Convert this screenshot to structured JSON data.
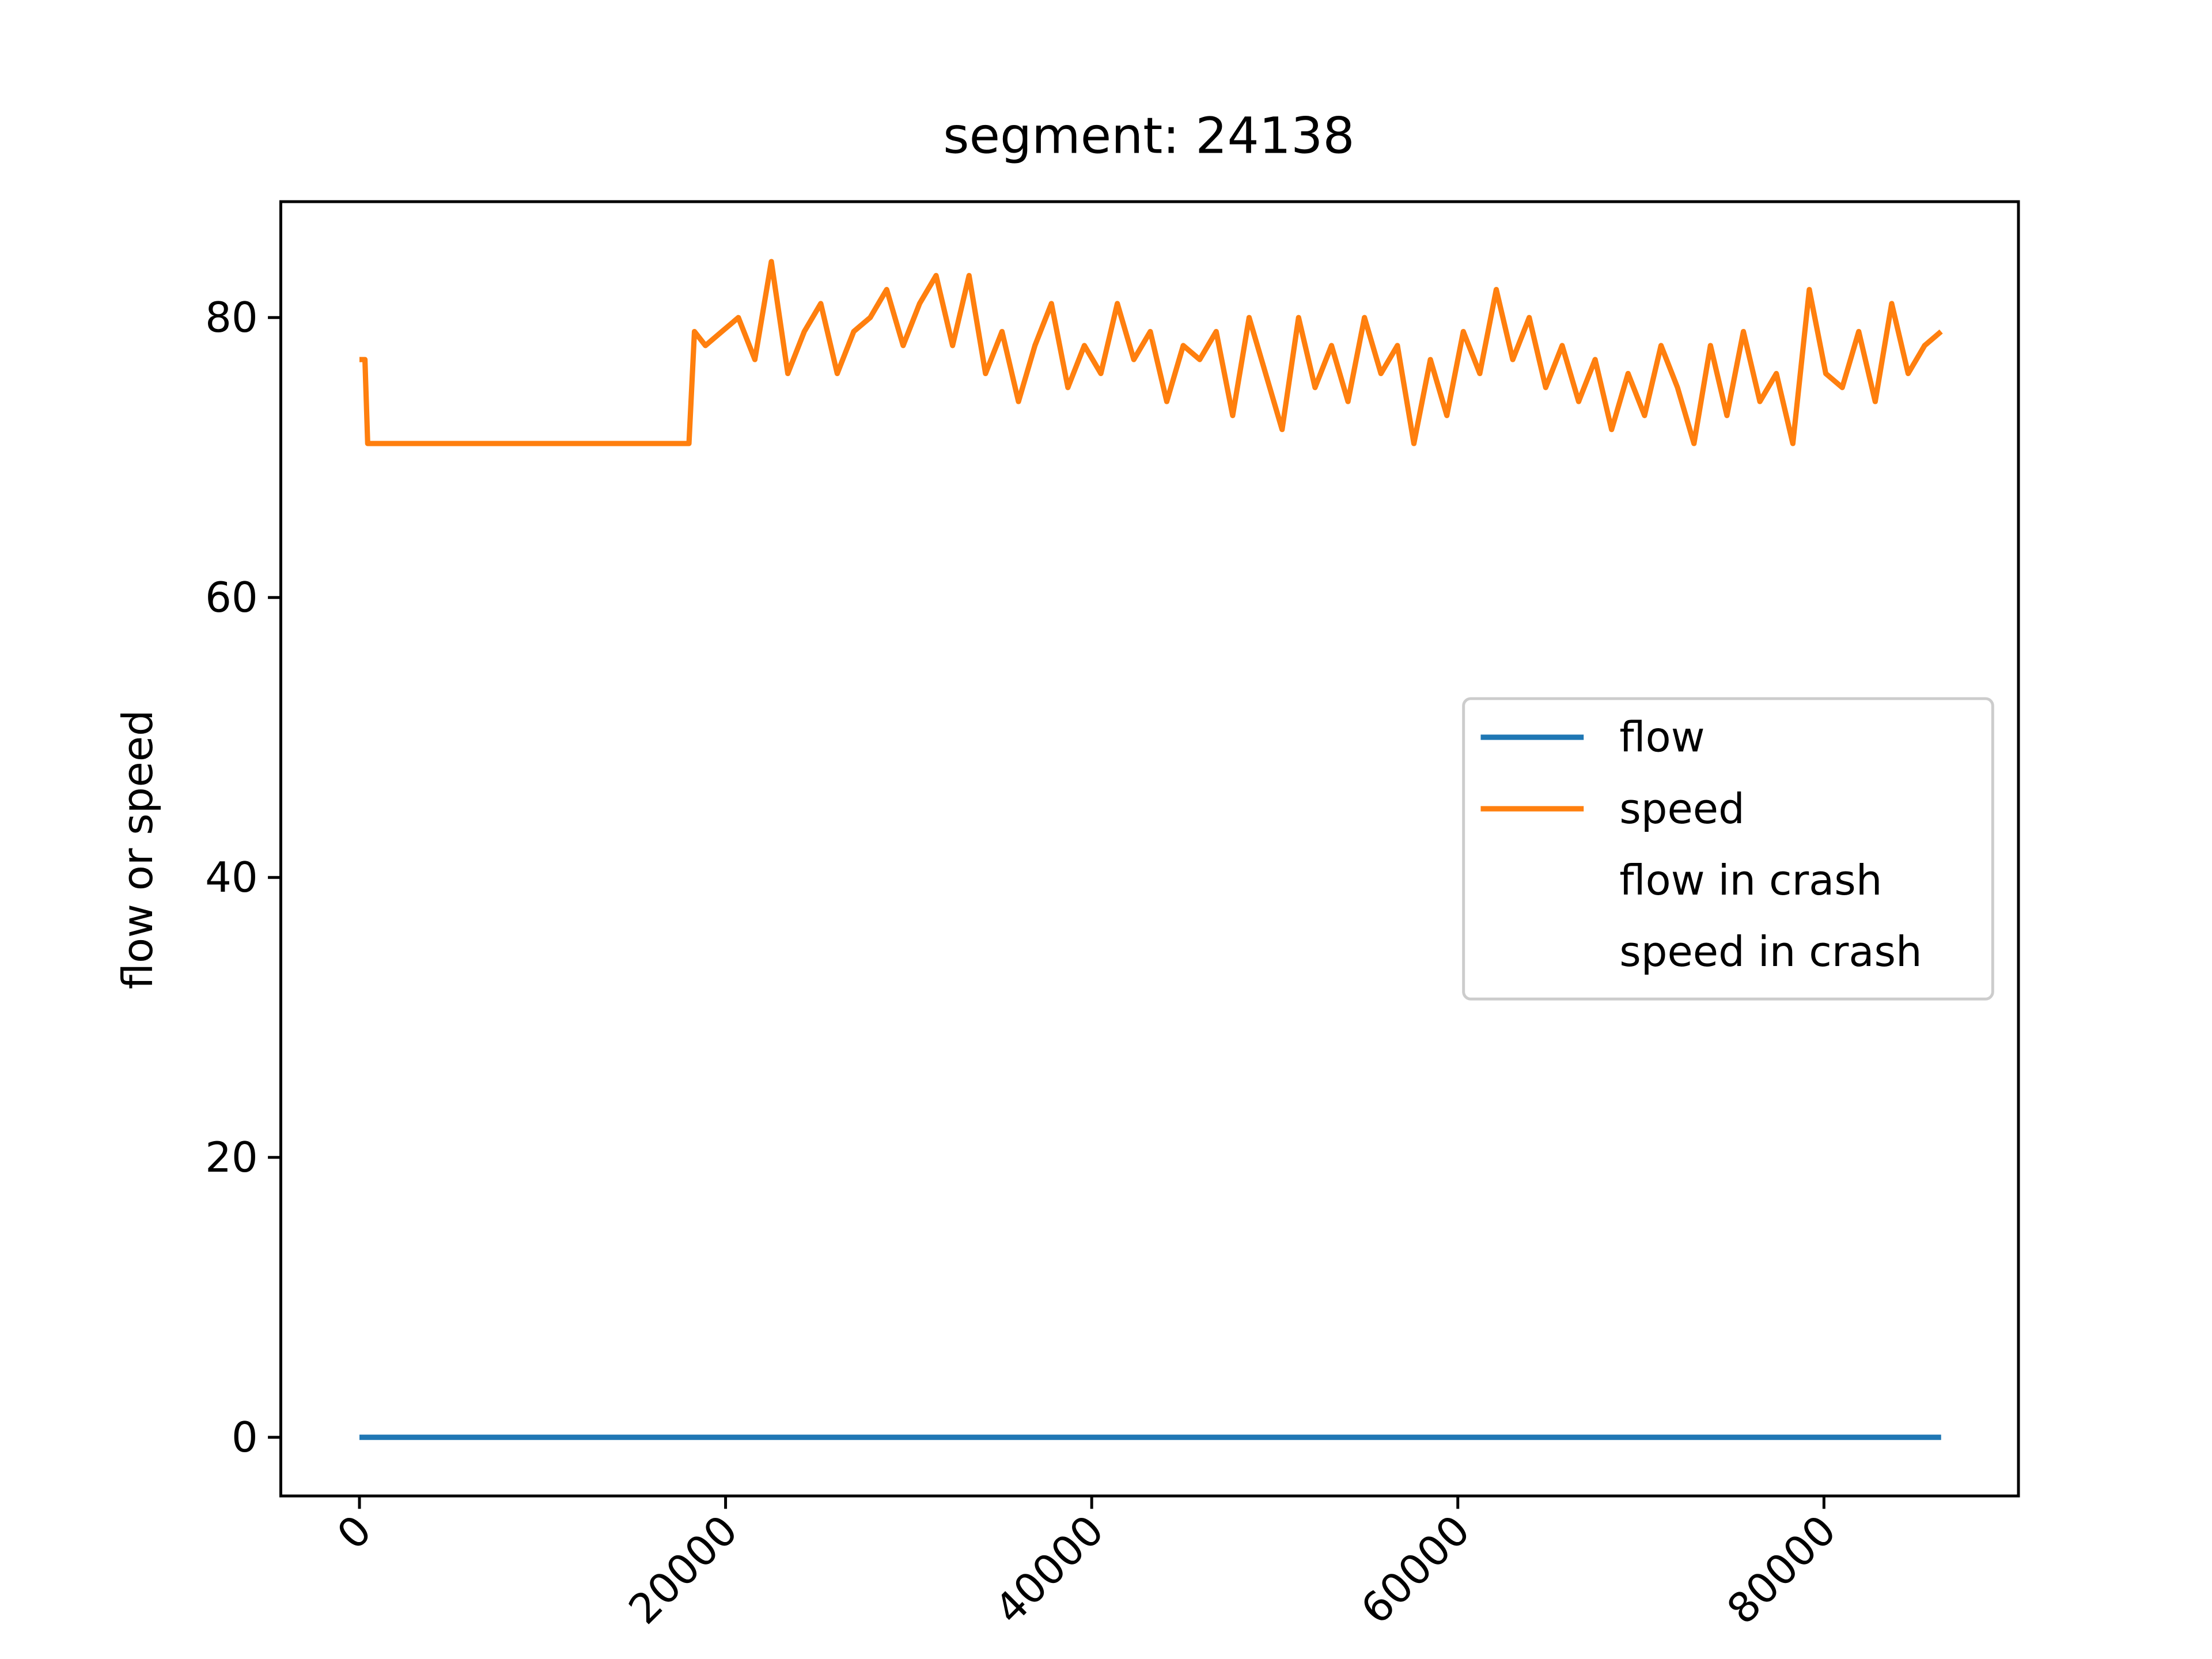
{
  "chart_data": {
    "type": "line",
    "title": "segment: 24138",
    "ylabel": "flow or speed",
    "x": [
      0,
      300,
      450,
      18000,
      18300,
      18900,
      19800,
      20700,
      21600,
      22500,
      23400,
      24300,
      25200,
      26100,
      27000,
      27900,
      28800,
      29700,
      30600,
      31500,
      32400,
      33300,
      34200,
      35100,
      36000,
      36900,
      37800,
      38700,
      39600,
      40500,
      41400,
      42300,
      43200,
      44100,
      45000,
      45900,
      46800,
      47700,
      48600,
      49500,
      50400,
      51300,
      52200,
      53100,
      54000,
      54900,
      55800,
      56700,
      57600,
      58500,
      59400,
      60300,
      61200,
      62100,
      63000,
      63900,
      64800,
      65700,
      66600,
      67500,
      68400,
      69300,
      70200,
      71100,
      72000,
      72900,
      73800,
      74700,
      75600,
      76500,
      77400,
      78300,
      79200,
      80100,
      81000,
      81900,
      82800,
      83700,
      84600,
      85500,
      86400
    ],
    "series": [
      {
        "name": "flow",
        "color": "#1f77b4",
        "values": [
          0,
          0,
          0,
          0,
          0,
          0,
          0,
          0,
          0,
          0,
          0,
          0,
          0,
          0,
          0,
          0,
          0,
          0,
          0,
          0,
          0,
          0,
          0,
          0,
          0,
          0,
          0,
          0,
          0,
          0,
          0,
          0,
          0,
          0,
          0,
          0,
          0,
          0,
          0,
          0,
          0,
          0,
          0,
          0,
          0,
          0,
          0,
          0,
          0,
          0,
          0,
          0,
          0,
          0,
          0,
          0,
          0,
          0,
          0,
          0,
          0,
          0,
          0,
          0,
          0,
          0,
          0,
          0,
          0,
          0,
          0,
          0,
          0,
          0,
          0,
          0,
          0,
          0,
          0,
          0,
          0
        ]
      },
      {
        "name": "speed",
        "color": "#ff7f0e",
        "values": [
          77,
          77,
          71,
          71,
          79,
          78,
          79,
          80,
          77,
          84,
          76,
          79,
          81,
          76,
          79,
          80,
          82,
          78,
          81,
          83,
          78,
          83,
          76,
          79,
          74,
          78,
          81,
          75,
          78,
          76,
          81,
          77,
          79,
          74,
          78,
          77,
          79,
          73,
          80,
          76,
          72,
          80,
          75,
          78,
          74,
          80,
          76,
          78,
          71,
          77,
          73,
          79,
          76,
          82,
          77,
          80,
          75,
          78,
          74,
          77,
          72,
          76,
          73,
          78,
          75,
          71,
          78,
          73,
          79,
          74,
          76,
          71,
          82,
          76,
          75,
          79,
          74,
          81,
          76,
          78,
          79
        ]
      },
      {
        "name": "flow in crash",
        "type": "scatter",
        "x": [],
        "values": []
      },
      {
        "name": "speed in crash",
        "type": "scatter",
        "x": [],
        "values": []
      }
    ],
    "xlim": [
      -4297,
      90625
    ],
    "xticks": [
      0,
      20000,
      40000,
      60000,
      80000
    ],
    "ylim": [
      -4.19,
      88.28
    ],
    "yticks": [
      0,
      20,
      40,
      60,
      80
    ],
    "legend": "center right"
  }
}
